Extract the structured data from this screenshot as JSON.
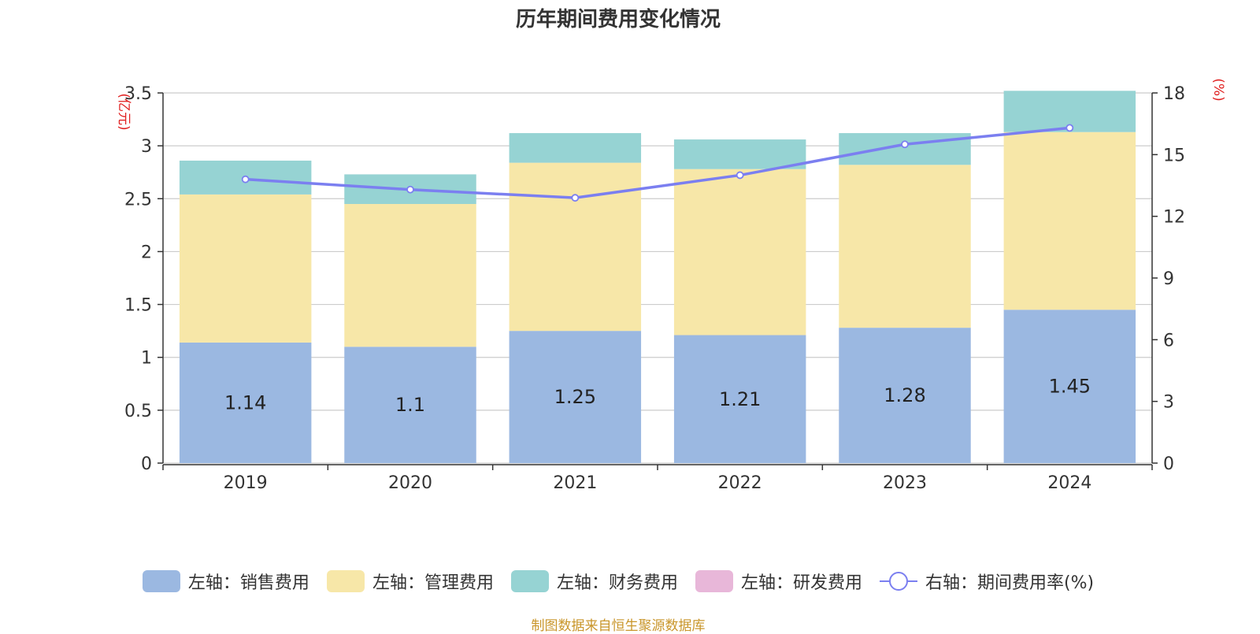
{
  "chart_data": {
    "type": "bar",
    "title": "历年期间费用变化情况",
    "categories": [
      "2019",
      "2020",
      "2021",
      "2022",
      "2023",
      "2024"
    ],
    "series": [
      {
        "name": "左轴：销售费用",
        "axis": "left",
        "color": "#9bb8e1",
        "values": [
          1.14,
          1.1,
          1.25,
          1.21,
          1.28,
          1.45
        ],
        "data_labels": [
          "1.14",
          "1.1",
          "1.25",
          "1.21",
          "1.28",
          "1.45"
        ]
      },
      {
        "name": "左轴：管理费用",
        "axis": "left",
        "color": "#f7e7a8",
        "values": [
          1.4,
          1.35,
          1.59,
          1.57,
          1.54,
          1.68
        ]
      },
      {
        "name": "左轴：财务费用",
        "axis": "left",
        "color": "#96d3d3",
        "values": [
          0.32,
          0.28,
          0.28,
          0.28,
          0.3,
          0.39
        ]
      },
      {
        "name": "左轴：研发费用",
        "axis": "left",
        "color": "#e8b7d9",
        "values": [
          0,
          0,
          0,
          0,
          0,
          0
        ]
      },
      {
        "name": "右轴：期间费用率(%)",
        "axis": "right",
        "type": "line",
        "color": "#7b7ff0",
        "values": [
          13.8,
          13.3,
          12.9,
          14.0,
          15.5,
          16.3
        ]
      }
    ],
    "y_left": {
      "label": "(亿元)",
      "ylim": [
        0,
        3.5
      ],
      "ticks": [
        "0",
        "0.5",
        "1",
        "1.5",
        "2",
        "2.5",
        "3",
        "3.5"
      ]
    },
    "y_right": {
      "label": "(%)",
      "ylim": [
        0,
        18
      ],
      "ticks": [
        "0",
        "3",
        "6",
        "9",
        "12",
        "15",
        "18"
      ]
    },
    "grid": true,
    "legend_position": "bottom"
  },
  "legend": [
    {
      "label": "左轴：销售费用",
      "color": "#9bb8e1",
      "kind": "box"
    },
    {
      "label": "左轴：管理费用",
      "color": "#f7e7a8",
      "kind": "box"
    },
    {
      "label": "左轴：财务费用",
      "color": "#96d3d3",
      "kind": "box"
    },
    {
      "label": "左轴：研发费用",
      "color": "#e8b7d9",
      "kind": "box"
    },
    {
      "label": "右轴：期间费用率(%)",
      "color": "#7b7ff0",
      "kind": "line"
    }
  ],
  "source": "制图数据来自恒生聚源数据库"
}
